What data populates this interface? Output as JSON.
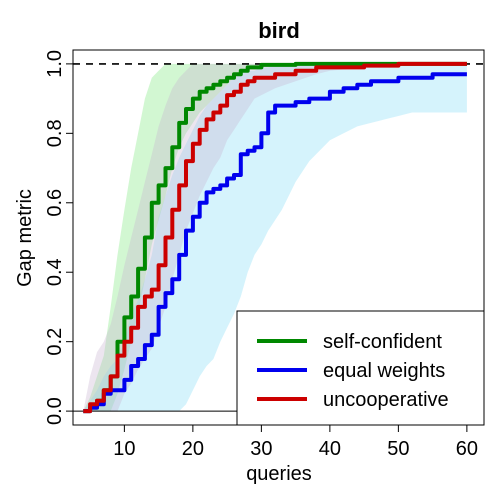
{
  "chart_data": {
    "type": "line",
    "title": "bird",
    "xlabel": "queries",
    "ylabel": "Gap metric",
    "xlim": [
      2.5,
      62.5
    ],
    "ylim": [
      -0.04,
      1.04
    ],
    "xticks": [
      10,
      20,
      30,
      40,
      50,
      60
    ],
    "yticks": [
      0.0,
      0.2,
      0.4,
      0.6,
      0.8,
      1.0
    ],
    "xtick_labels": [
      "10",
      "20",
      "30",
      "40",
      "50",
      "60"
    ],
    "ytick_labels": [
      "0.0",
      "0.2",
      "0.4",
      "0.6",
      "0.8",
      "1.0"
    ],
    "reference_lines": [
      {
        "y": 1.0,
        "style": "dashed",
        "color": "#000000"
      },
      {
        "y": 0.0,
        "style": "solid",
        "color": "#000000"
      }
    ],
    "legend_position": "bottom-right",
    "series": [
      {
        "name": "self-confident",
        "color": "#008800",
        "band_color": "#7ee87e",
        "x": [
          4,
          5,
          6,
          7,
          8,
          9,
          10,
          11,
          12,
          13,
          14,
          15,
          16,
          17,
          18,
          19,
          20,
          21,
          22,
          23,
          24,
          25,
          26,
          27,
          28,
          30,
          35,
          40,
          50,
          60
        ],
        "y": [
          0.0,
          0.01,
          0.03,
          0.06,
          0.1,
          0.2,
          0.27,
          0.33,
          0.41,
          0.5,
          0.6,
          0.65,
          0.7,
          0.76,
          0.83,
          0.87,
          0.9,
          0.92,
          0.93,
          0.94,
          0.95,
          0.96,
          0.97,
          0.98,
          0.99,
          0.997,
          1.0,
          1.0,
          1.0,
          1.0
        ],
        "lower": [
          0.0,
          0.0,
          0.0,
          0.0,
          0.0,
          0.05,
          0.12,
          0.2,
          0.28,
          0.38,
          0.48,
          0.55,
          0.62,
          0.7,
          0.76,
          0.8,
          0.83,
          0.86,
          0.88,
          0.9,
          0.92,
          0.94,
          0.96,
          0.98,
          0.99,
          0.995,
          1.0,
          1.0,
          1.0,
          1.0
        ],
        "upper": [
          0.0,
          0.04,
          0.1,
          0.16,
          0.3,
          0.45,
          0.58,
          0.7,
          0.8,
          0.9,
          0.96,
          0.98,
          1.0,
          1.0,
          1.0,
          1.0,
          1.0,
          1.0,
          1.0,
          1.0,
          1.0,
          1.0,
          1.0,
          1.0,
          1.0,
          1.0,
          1.0,
          1.0,
          1.0,
          1.0
        ]
      },
      {
        "name": "equal weights",
        "color": "#0000ee",
        "band_color": "#87dcf5",
        "x": [
          4,
          5,
          6,
          7,
          8,
          9,
          10,
          11,
          12,
          13,
          14,
          15,
          16,
          17,
          18,
          19,
          20,
          21,
          22,
          23,
          24,
          25,
          26,
          27,
          28,
          29,
          30,
          31,
          32,
          33,
          34,
          35,
          37,
          40,
          42,
          44,
          46,
          48,
          50,
          52,
          55,
          58,
          60
        ],
        "y": [
          0.0,
          0.01,
          0.02,
          0.05,
          0.06,
          0.06,
          0.09,
          0.13,
          0.15,
          0.19,
          0.22,
          0.3,
          0.34,
          0.38,
          0.45,
          0.52,
          0.56,
          0.6,
          0.63,
          0.64,
          0.65,
          0.67,
          0.68,
          0.74,
          0.75,
          0.76,
          0.8,
          0.86,
          0.88,
          0.88,
          0.88,
          0.89,
          0.9,
          0.92,
          0.93,
          0.94,
          0.95,
          0.95,
          0.96,
          0.96,
          0.97,
          0.97,
          0.97
        ],
        "lower": [
          0.0,
          0.0,
          0.0,
          0.0,
          0.0,
          0.0,
          0.0,
          0.0,
          0.0,
          0.0,
          0.0,
          0.0,
          0.0,
          0.0,
          0.0,
          0.02,
          0.06,
          0.1,
          0.13,
          0.15,
          0.2,
          0.24,
          0.28,
          0.33,
          0.4,
          0.45,
          0.48,
          0.52,
          0.55,
          0.58,
          0.62,
          0.66,
          0.72,
          0.78,
          0.8,
          0.82,
          0.83,
          0.84,
          0.85,
          0.86,
          0.86,
          0.86,
          0.86
        ],
        "upper": [
          0.0,
          0.03,
          0.06,
          0.1,
          0.13,
          0.15,
          0.2,
          0.28,
          0.32,
          0.38,
          0.45,
          0.56,
          0.62,
          0.68,
          0.73,
          0.77,
          0.81,
          0.85,
          0.88,
          0.9,
          0.92,
          0.94,
          0.96,
          0.97,
          0.98,
          0.98,
          0.99,
          0.99,
          1.0,
          1.0,
          1.0,
          1.0,
          1.0,
          1.0,
          1.0,
          1.0,
          1.0,
          1.0,
          1.0,
          1.0,
          1.0,
          1.0,
          1.0
        ]
      },
      {
        "name": "uncooperative",
        "color": "#cc0000",
        "band_color": "#c8b4d2",
        "x": [
          4,
          5,
          6,
          7,
          8,
          9,
          10,
          11,
          12,
          13,
          14,
          15,
          16,
          17,
          18,
          19,
          20,
          21,
          22,
          23,
          24,
          25,
          26,
          27,
          28,
          29,
          30,
          32,
          35,
          38,
          40,
          45,
          50,
          55,
          60
        ],
        "y": [
          0.0,
          0.02,
          0.03,
          0.06,
          0.1,
          0.16,
          0.2,
          0.24,
          0.3,
          0.33,
          0.35,
          0.42,
          0.5,
          0.58,
          0.65,
          0.72,
          0.77,
          0.81,
          0.84,
          0.86,
          0.88,
          0.91,
          0.92,
          0.94,
          0.95,
          0.96,
          0.96,
          0.97,
          0.98,
          0.99,
          0.99,
          0.995,
          1.0,
          1.0,
          1.0
        ],
        "lower": [
          0.0,
          0.0,
          0.0,
          0.0,
          0.0,
          0.0,
          0.05,
          0.08,
          0.12,
          0.15,
          0.18,
          0.24,
          0.3,
          0.38,
          0.45,
          0.52,
          0.57,
          0.62,
          0.66,
          0.7,
          0.73,
          0.78,
          0.81,
          0.84,
          0.87,
          0.9,
          0.91,
          0.93,
          0.95,
          0.97,
          0.98,
          0.99,
          1.0,
          1.0,
          1.0
        ],
        "upper": [
          0.0,
          0.1,
          0.17,
          0.2,
          0.25,
          0.33,
          0.42,
          0.5,
          0.58,
          0.66,
          0.74,
          0.82,
          0.88,
          0.93,
          0.96,
          0.98,
          1.0,
          1.0,
          1.0,
          1.0,
          1.0,
          1.0,
          1.0,
          1.0,
          1.0,
          1.0,
          1.0,
          1.0,
          1.0,
          1.0,
          1.0,
          1.0,
          1.0,
          1.0,
          1.0
        ]
      }
    ],
    "legend_order": [
      "self-confident",
      "equal weights",
      "uncooperative"
    ]
  }
}
